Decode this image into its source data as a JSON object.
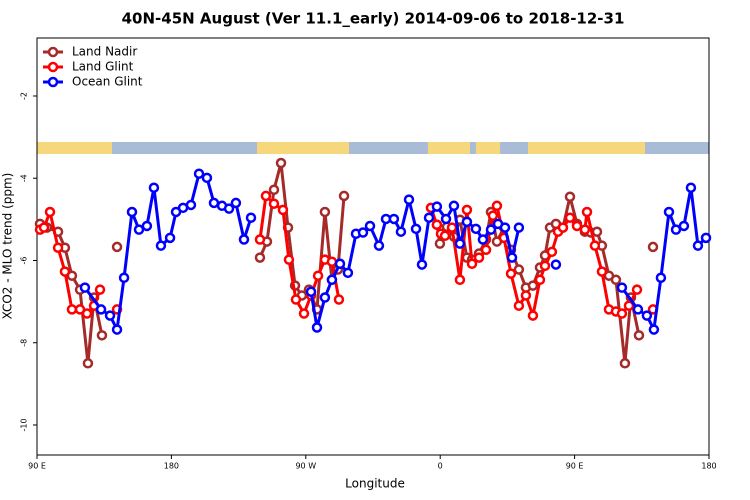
{
  "chart_data": {
    "type": "line",
    "title": "40N-45N August (Ver 11.1_early)   2014-09-06 to 2018-12-31",
    "xlabel": "Longitude",
    "ylabel": "XCO2 - MLO trend (ppm)",
    "xlim": [
      90,
      540
    ],
    "ylim": [
      -10.73,
      -0.59
    ],
    "xticks": [
      {
        "value": 90,
        "label": "90 E"
      },
      180,
      {
        "value": 270,
        "label": "90 W"
      },
      {
        "value": 360,
        "label": "0"
      },
      {
        "value": 450,
        "label": "90 E"
      },
      {
        "value": 540,
        "label": "180"
      }
    ],
    "yticks": [
      -2,
      -4,
      -6,
      -8,
      -10
    ],
    "legend": "top-left",
    "grid": false,
    "series": [
      {
        "name": "Land Nadir",
        "color": "#a52a2a",
        "x": [
          92.0,
          96.7,
          104.1,
          108.7,
          113.4,
          118.8,
          124.1,
          128.2,
          133.5,
          null,
          143.6,
          null,
          239.3,
          244.0,
          248.7,
          253.4,
          258.1,
          262.8,
          267.4,
          272.1,
          277.5,
          282.8,
          287.5,
          291.5,
          295.6,
          null,
          357.8,
          359.8,
          364.5,
          369.2,
          373.2,
          377.9,
          381.3,
          386.0,
          390.7,
          394.0,
          398.0,
          402.7,
          407.4,
          412.7,
          417.4,
          422.1,
          426.8,
          430.2,
          433.5,
          437.5,
          442.2,
          446.9,
          451.6,
          456.9,
          460.9,
          465.0,
          468.3,
          473.0,
          477.7,
          483.7,
          487.7,
          493.1,
          null,
          502.5
        ],
        "values": [
          -5.11,
          -5.2,
          -5.3,
          -5.69,
          -6.37,
          -6.71,
          -8.5,
          -6.9,
          -7.82,
          null,
          -5.67,
          null,
          -5.93,
          -5.54,
          -4.28,
          -3.63,
          -5.2,
          -6.61,
          -6.85,
          -6.71,
          -7.19,
          -4.82,
          -6.47,
          -6.22,
          -4.43,
          null,
          -5.13,
          -5.59,
          -5.18,
          -5.42,
          -5.01,
          -5.93,
          -5.98,
          -5.83,
          -5.49,
          -4.82,
          -5.54,
          -5.2,
          -5.74,
          -6.22,
          -6.66,
          -6.61,
          -6.17,
          -5.88,
          -5.2,
          -5.11,
          -5.2,
          -4.45,
          -5.11,
          -5.3,
          -5.32,
          -5.3,
          -5.64,
          -6.37,
          -6.47,
          -8.5,
          -6.9,
          -7.82,
          null,
          -5.67
        ]
      },
      {
        "name": "Land Glint",
        "color": "#ff0000",
        "x": [
          92.0,
          94.7,
          98.7,
          104.1,
          108.7,
          113.4,
          118.8,
          123.5,
          128.2,
          132.2,
          null,
          143.6,
          null,
          239.3,
          243.3,
          248.7,
          254.7,
          258.7,
          263.4,
          268.8,
          273.5,
          278.2,
          282.8,
          287.5,
          292.2,
          null,
          353.8,
          357.8,
          360.5,
          363.2,
          367.9,
          373.2,
          377.9,
          381.3,
          386.0,
          390.7,
          395.3,
          398.0,
          402.7,
          407.4,
          412.7,
          417.4,
          422.1,
          426.8,
          430.2,
          434.8,
          438.9,
          442.2,
          446.9,
          451.6,
          456.9,
          458.3,
          463.6,
          468.3,
          473.0,
          477.7,
          481.7,
          486.4,
          491.8,
          null,
          502.5
        ],
        "values": [
          -5.25,
          -5.2,
          -4.82,
          -5.69,
          -6.27,
          -7.19,
          -7.19,
          -7.29,
          -7.1,
          -6.71,
          null,
          -7.19,
          null,
          -5.49,
          -4.43,
          -4.62,
          -4.77,
          -5.98,
          -6.95,
          -7.29,
          -6.85,
          -6.37,
          -5.98,
          -6.03,
          -6.95,
          null,
          -4.72,
          -5.13,
          -5.35,
          -5.4,
          -5.2,
          -6.47,
          -4.77,
          -6.08,
          -5.93,
          -5.74,
          -4.91,
          -4.67,
          -5.45,
          -6.32,
          -7.1,
          -6.85,
          -7.34,
          -6.47,
          -6.13,
          -5.79,
          -5.3,
          -5.2,
          -4.96,
          -5.16,
          -5.25,
          -4.82,
          -5.64,
          -6.27,
          -7.19,
          -7.24,
          -7.29,
          -7.1,
          -6.71,
          null,
          -7.19
        ]
      },
      {
        "name": "Ocean Glint",
        "color": "#0000ff",
        "x": [
          122.1,
          132.9,
          138.9,
          143.6,
          148.3,
          153.6,
          158.3,
          163.6,
          168.3,
          173.0,
          179.1,
          183.1,
          187.8,
          193.1,
          198.5,
          203.8,
          208.5,
          213.9,
          218.6,
          223.2,
          228.6,
          233.3,
          null,
          273.5,
          277.5,
          282.8,
          287.5,
          292.9,
          298.2,
          303.6,
          308.3,
          313.0,
          319.0,
          323.7,
          329.0,
          333.7,
          339.1,
          343.8,
          347.8,
          352.5,
          357.8,
          363.9,
          369.2,
          373.2,
          377.9,
          383.9,
          388.6,
          394.0,
          398.7,
          403.4,
          408.1,
          412.7,
          null,
          437.5,
          null,
          481.7,
          492.4,
          498.4,
          503.1,
          507.8,
          513.2,
          517.9,
          523.2,
          527.9,
          532.6,
          538.0
        ],
        "values": [
          -6.66,
          -7.19,
          -7.34,
          -7.68,
          -6.42,
          -4.82,
          -5.25,
          -5.16,
          -4.23,
          -5.64,
          -5.45,
          -4.82,
          -4.72,
          -4.65,
          -3.89,
          -3.99,
          -4.6,
          -4.67,
          -4.74,
          -4.6,
          -5.49,
          -4.96,
          null,
          -6.76,
          -7.63,
          -6.9,
          -6.47,
          -6.08,
          -6.3,
          -5.35,
          -5.32,
          -5.16,
          -5.64,
          -4.99,
          -4.99,
          -5.3,
          -4.52,
          -5.23,
          -6.1,
          -4.96,
          -4.69,
          -4.99,
          -4.67,
          -5.59,
          -5.06,
          -5.23,
          -5.49,
          -5.25,
          -5.11,
          -5.2,
          -5.93,
          -5.2,
          null,
          -6.1,
          null,
          -6.66,
          -7.19,
          -7.34,
          -7.68,
          -6.42,
          -4.82,
          -5.25,
          -5.16,
          -4.23,
          -5.64,
          -5.45
        ]
      }
    ]
  }
}
